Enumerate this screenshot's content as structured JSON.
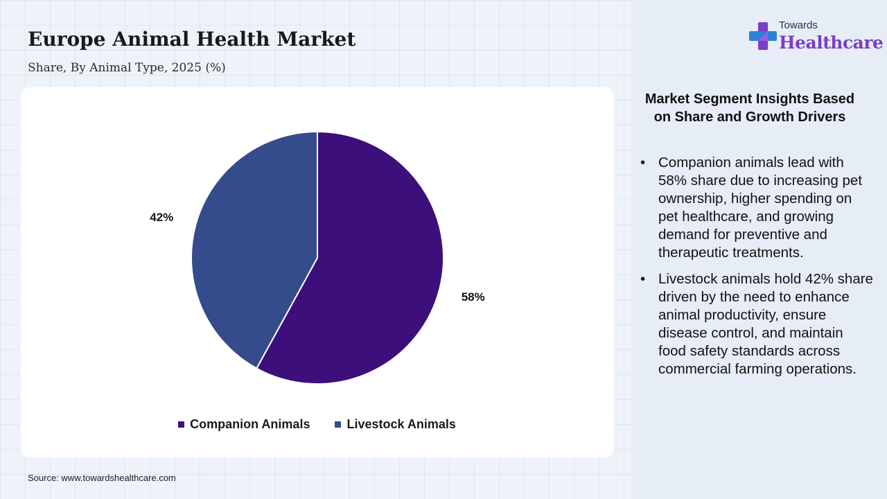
{
  "header": {
    "title": "Europe Animal Health Market",
    "subtitle": "Share, By Animal Type, 2025 (%)"
  },
  "chart_data": {
    "type": "pie",
    "categories": [
      "Companion Animals",
      "Livestock Animals"
    ],
    "values": [
      58,
      42
    ],
    "labels": [
      "58%",
      "42%"
    ],
    "colors": [
      "#3c0f7a",
      "#344c8c"
    ],
    "legend_position": "bottom"
  },
  "source": "Source: www.towardshealthcare.com",
  "logo": {
    "line1": "Towards",
    "line2": "Healthcare"
  },
  "insights": {
    "title": "Market Segment Insights Based on Share and Growth Drivers",
    "bullets": [
      "Companion animals lead with 58% share due to increasing pet ownership, higher spending on pet healthcare, and growing demand for preventive and therapeutic treatments.",
      "Livestock animals hold 42% share driven by the need to enhance animal productivity, ensure disease control, and maintain food safety standards across commercial farming operations."
    ]
  }
}
